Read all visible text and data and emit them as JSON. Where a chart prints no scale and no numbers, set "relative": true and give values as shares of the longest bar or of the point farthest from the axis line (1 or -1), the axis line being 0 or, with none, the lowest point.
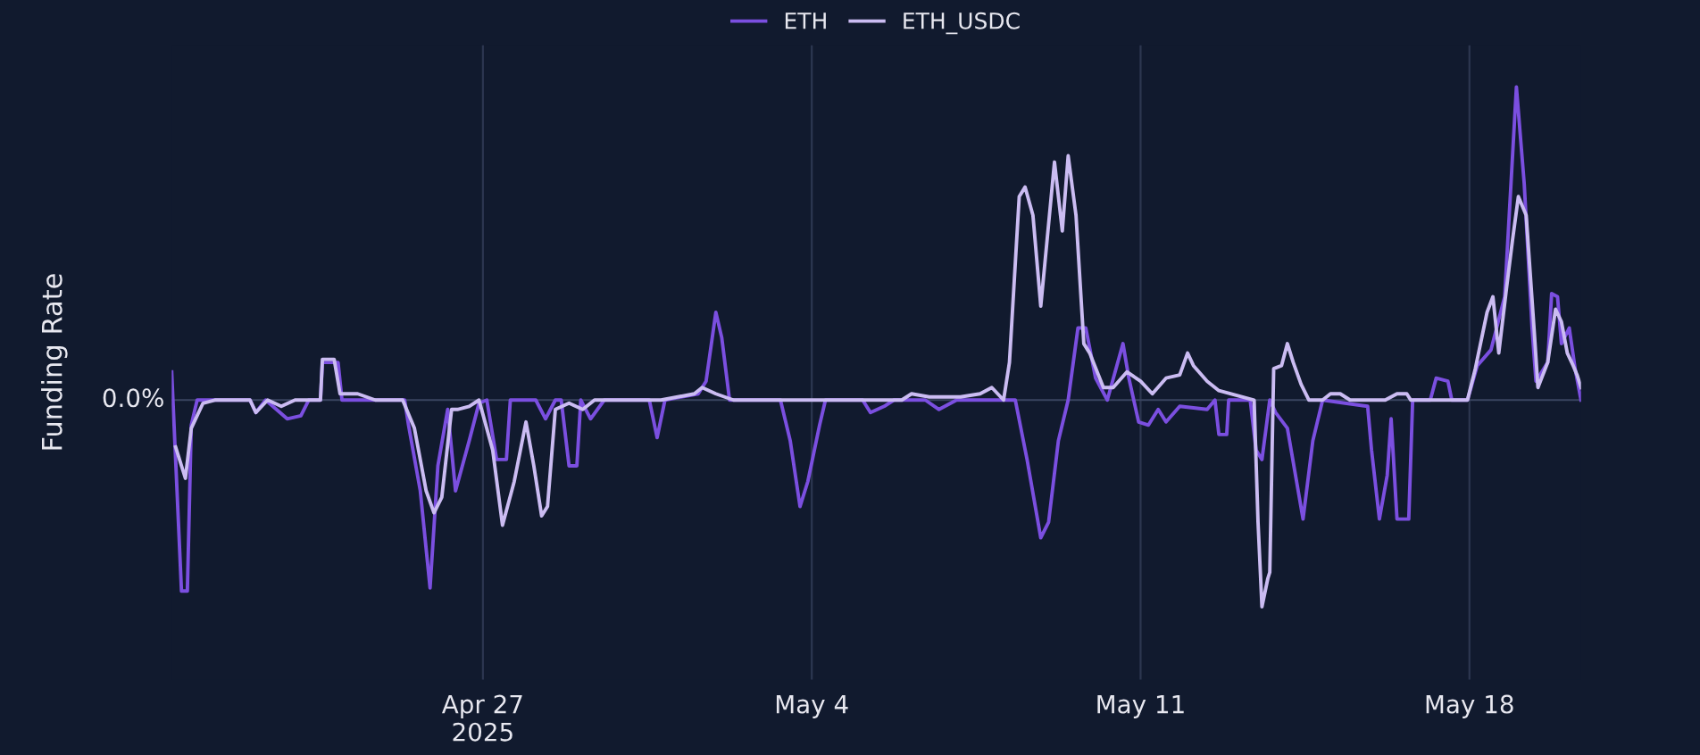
{
  "chart_data": {
    "type": "line",
    "relative": true,
    "ylabel": "Funding Rate",
    "grid": "x",
    "legend": "top",
    "xlim": [
      "2025-04-20T09:00",
      "2025-05-20T09:00"
    ],
    "xticks": [
      {
        "value": "2025-04-27",
        "label": "Apr 27\n2025"
      },
      {
        "value": "2025-05-04",
        "label": "May 4"
      },
      {
        "value": "2025-05-11",
        "label": "May 11"
      },
      {
        "value": "2025-05-18",
        "label": "May 18"
      }
    ],
    "ref_lines": [
      {
        "axis": "y",
        "value": 0,
        "label": "0.0%",
        "color": "#3a4560"
      }
    ],
    "series": [
      {
        "name": "ETH",
        "color": "#7b4fe0",
        "x": [
          "2025-04-20T09:00",
          "2025-04-20T11:00",
          "2025-04-20T14:00",
          "2025-04-20T17:00",
          "2025-04-20T19:00",
          "2025-04-20T22:00",
          "2025-04-22T01:00",
          "2025-04-22T04:00",
          "2025-04-22T09:00",
          "2025-04-22T20:00",
          "2025-04-23T03:00",
          "2025-04-23T07:00",
          "2025-04-23T13:00",
          "2025-04-23T14:00",
          "2025-04-23T22:00",
          "2025-04-24T00:00",
          "2025-04-25T08:00",
          "2025-04-25T10:00",
          "2025-04-25T16:00",
          "2025-04-25T21:00",
          "2025-04-26T01:00",
          "2025-04-26T06:00",
          "2025-04-26T10:00",
          "2025-04-26T17:00",
          "2025-04-26T22:00",
          "2025-04-27T02:00",
          "2025-04-27T07:00",
          "2025-04-27T12:00",
          "2025-04-27T14:00",
          "2025-04-28T03:00",
          "2025-04-28T08:00",
          "2025-04-28T13:00",
          "2025-04-28T16:00",
          "2025-04-28T20:00",
          "2025-04-29T00:00",
          "2025-04-29T02:00",
          "2025-04-29T07:00",
          "2025-04-29T14:00",
          "2025-04-30T13:00",
          "2025-04-30T17:00",
          "2025-04-30T21:00",
          "2025-05-01T14:00",
          "2025-05-01T18:00",
          "2025-05-01T23:00",
          "2025-05-02T02:00",
          "2025-05-02T06:00",
          "2025-05-03T08:00",
          "2025-05-03T13:00",
          "2025-05-03T18:00",
          "2025-05-03T22:00",
          "2025-05-04T04:00",
          "2025-05-04T07:00",
          "2025-05-05T02:00",
          "2025-05-05T06:00",
          "2025-05-05T13:00",
          "2025-05-05T18:00",
          "2025-05-06T10:00",
          "2025-05-06T17:00",
          "2025-05-07T02:00",
          "2025-05-08T08:00",
          "2025-05-08T14:00",
          "2025-05-08T21:00",
          "2025-05-09T01:00",
          "2025-05-09T06:00",
          "2025-05-09T11:00",
          "2025-05-09T16:00",
          "2025-05-09T20:00",
          "2025-05-10T01:00",
          "2025-05-10T07:00",
          "2025-05-10T15:00",
          "2025-05-10T18:00",
          "2025-05-10T23:00",
          "2025-05-11T04:00",
          "2025-05-11T09:00",
          "2025-05-11T13:00",
          "2025-05-11T20:00",
          "2025-05-12T10:00",
          "2025-05-12T14:00",
          "2025-05-12T16:00",
          "2025-05-12T20:00",
          "2025-05-12T21:00",
          "2025-05-13T08:00",
          "2025-05-13T11:00",
          "2025-05-13T14:00",
          "2025-05-13T18:00",
          "2025-05-13T21:00",
          "2025-05-14T03:00",
          "2025-05-14T11:00",
          "2025-05-14T16:00",
          "2025-05-14T21:00",
          "2025-05-15T20:00",
          "2025-05-15T22:00",
          "2025-05-16T02:00",
          "2025-05-16T06:00",
          "2025-05-16T08:00",
          "2025-05-16T11:00",
          "2025-05-16T17:00",
          "2025-05-16T19:00",
          "2025-05-17T04:00",
          "2025-05-17T07:00",
          "2025-05-17T13:00",
          "2025-05-17T15:00",
          "2025-05-17T23:00",
          "2025-05-18T04:00",
          "2025-05-18T11:00",
          "2025-05-18T18:00",
          "2025-05-19T00:00",
          "2025-05-19T04:00",
          "2025-05-19T08:00",
          "2025-05-19T10:00",
          "2025-05-19T16:00",
          "2025-05-19T18:00",
          "2025-05-19T21:00",
          "2025-05-19T23:00",
          "2025-05-20T03:00",
          "2025-05-20T06:00",
          "2025-05-20T09:00"
        ],
        "values": [
          0.09,
          -0.19,
          -0.61,
          -0.61,
          -0.08,
          0,
          0,
          -0.04,
          0,
          -0.06,
          -0.05,
          0,
          0,
          0.12,
          0.12,
          0,
          0,
          -0.08,
          -0.29,
          -0.6,
          -0.21,
          -0.03,
          -0.29,
          -0.13,
          -0.01,
          0,
          -0.19,
          -0.19,
          0,
          0,
          -0.06,
          0,
          0,
          -0.21,
          -0.21,
          0,
          -0.06,
          0,
          0,
          -0.12,
          0,
          0.02,
          0.06,
          0.28,
          0.2,
          0,
          0,
          -0.13,
          -0.34,
          -0.26,
          -0.08,
          0,
          0,
          -0.04,
          -0.02,
          0,
          0,
          -0.03,
          0,
          0,
          -0.19,
          -0.44,
          -0.39,
          -0.13,
          0,
          0.23,
          0.23,
          0.07,
          0,
          0.18,
          0.07,
          -0.07,
          -0.08,
          -0.03,
          -0.07,
          -0.02,
          -0.03,
          0,
          -0.11,
          -0.11,
          0,
          0,
          -0.16,
          -0.19,
          0,
          -0.04,
          -0.09,
          -0.38,
          -0.13,
          0,
          -0.02,
          -0.16,
          -0.38,
          -0.24,
          -0.06,
          -0.38,
          -0.38,
          0,
          0,
          0.07,
          0.06,
          0,
          0,
          0.11,
          0.16,
          0.33,
          1.0,
          0.69,
          0.23,
          0.06,
          0.12,
          0.34,
          0.33,
          0.18,
          0.23,
          0.1,
          0
        ]
      },
      {
        "name": "ETH_USDC",
        "color": "#cbbcf2",
        "x": [
          "2025-04-20T11:00",
          "2025-04-20T16:00",
          "2025-04-20T19:00",
          "2025-04-21T01:00",
          "2025-04-21T07:00",
          "2025-04-22T01:00",
          "2025-04-22T04:00",
          "2025-04-22T10:00",
          "2025-04-22T17:00",
          "2025-04-23T00:00",
          "2025-04-23T13:00",
          "2025-04-23T14:00",
          "2025-04-23T20:00",
          "2025-04-23T23:00",
          "2025-04-24T08:00",
          "2025-04-24T17:00",
          "2025-04-25T07:00",
          "2025-04-25T13:00",
          "2025-04-25T19:00",
          "2025-04-25T23:00",
          "2025-04-26T03:00",
          "2025-04-26T08:00",
          "2025-04-26T11:00",
          "2025-04-26T17:00",
          "2025-04-26T22:00",
          "2025-04-27T05:00",
          "2025-04-27T10:00",
          "2025-04-27T16:00",
          "2025-04-27T22:00",
          "2025-04-28T02:00",
          "2025-04-28T06:00",
          "2025-04-28T09:00",
          "2025-04-28T13:00",
          "2025-04-28T20:00",
          "2025-04-29T03:00",
          "2025-04-29T09:00",
          "2025-04-30T19:00",
          "2025-05-01T12:00",
          "2025-05-01T16:00",
          "2025-05-01T23:00",
          "2025-05-02T08:00",
          "2025-05-05T22:00",
          "2025-05-06T03:00",
          "2025-05-06T12:00",
          "2025-05-07T04:00",
          "2025-05-07T14:00",
          "2025-05-07T20:00",
          "2025-05-08T02:00",
          "2025-05-08T05:00",
          "2025-05-08T10:00",
          "2025-05-08T13:00",
          "2025-05-08T17:00",
          "2025-05-08T21:00",
          "2025-05-08T23:00",
          "2025-05-09T04:00",
          "2025-05-09T08:00",
          "2025-05-09T11:00",
          "2025-05-09T15:00",
          "2025-05-09T19:00",
          "2025-05-09T22:00",
          "2025-05-10T05:00",
          "2025-05-10T10:00",
          "2025-05-10T17:00",
          "2025-05-11T00:00",
          "2025-05-11T06:00",
          "2025-05-11T13:00",
          "2025-05-11T20:00",
          "2025-05-12T00:00",
          "2025-05-12T03:00",
          "2025-05-12T10:00",
          "2025-05-12T16:00",
          "2025-05-13T10:00",
          "2025-05-13T12:00",
          "2025-05-13T14:00",
          "2025-05-13T17:00",
          "2025-05-13T18:00",
          "2025-05-13T20:00",
          "2025-05-14T00:00",
          "2025-05-14T03:00",
          "2025-05-14T06:00",
          "2025-05-14T10:00",
          "2025-05-14T14:00",
          "2025-05-14T21:00",
          "2025-05-15T01:00",
          "2025-05-15T06:00",
          "2025-05-15T11:00",
          "2025-05-16T05:00",
          "2025-05-16T11:00",
          "2025-05-16T16:00",
          "2025-05-16T18:00",
          "2025-05-17T23:00",
          "2025-05-18T03:00",
          "2025-05-18T09:00",
          "2025-05-18T12:00",
          "2025-05-18T15:00",
          "2025-05-18T19:00",
          "2025-05-18T22:00",
          "2025-05-19T01:00",
          "2025-05-19T05:00",
          "2025-05-19T09:00",
          "2025-05-19T11:00",
          "2025-05-19T16:00",
          "2025-05-19T20:00",
          "2025-05-19T23:00",
          "2025-05-20T02:00",
          "2025-05-20T05:00",
          "2025-05-20T07:00",
          "2025-05-20T09:00"
        ],
        "values": [
          -0.15,
          -0.25,
          -0.09,
          -0.01,
          0,
          0,
          -0.04,
          0,
          -0.02,
          0,
          0,
          0.13,
          0.13,
          0.02,
          0.02,
          0,
          0,
          -0.09,
          -0.29,
          -0.36,
          -0.31,
          -0.03,
          -0.03,
          -0.02,
          0,
          -0.16,
          -0.4,
          -0.26,
          -0.07,
          -0.21,
          -0.37,
          -0.34,
          -0.03,
          -0.01,
          -0.03,
          0,
          0,
          0.02,
          0.04,
          0.02,
          0,
          0,
          0.02,
          0.01,
          0.01,
          0.02,
          0.04,
          0,
          0.12,
          0.65,
          0.68,
          0.59,
          0.3,
          0.43,
          0.76,
          0.54,
          0.78,
          0.59,
          0.18,
          0.15,
          0.04,
          0.04,
          0.09,
          0.06,
          0.02,
          0.07,
          0.08,
          0.15,
          0.11,
          0.06,
          0.03,
          0,
          -0.39,
          -0.66,
          -0.57,
          -0.55,
          0.1,
          0.11,
          0.18,
          0.12,
          0.05,
          0,
          0,
          0.02,
          0.02,
          0,
          0,
          0.02,
          0.02,
          0,
          0,
          0.1,
          0.28,
          0.33,
          0.15,
          0.36,
          0.51,
          0.65,
          0.59,
          0.23,
          0.04,
          0.12,
          0.29,
          0.25,
          0.15,
          0.11,
          0.08,
          0.04
        ]
      }
    ]
  }
}
